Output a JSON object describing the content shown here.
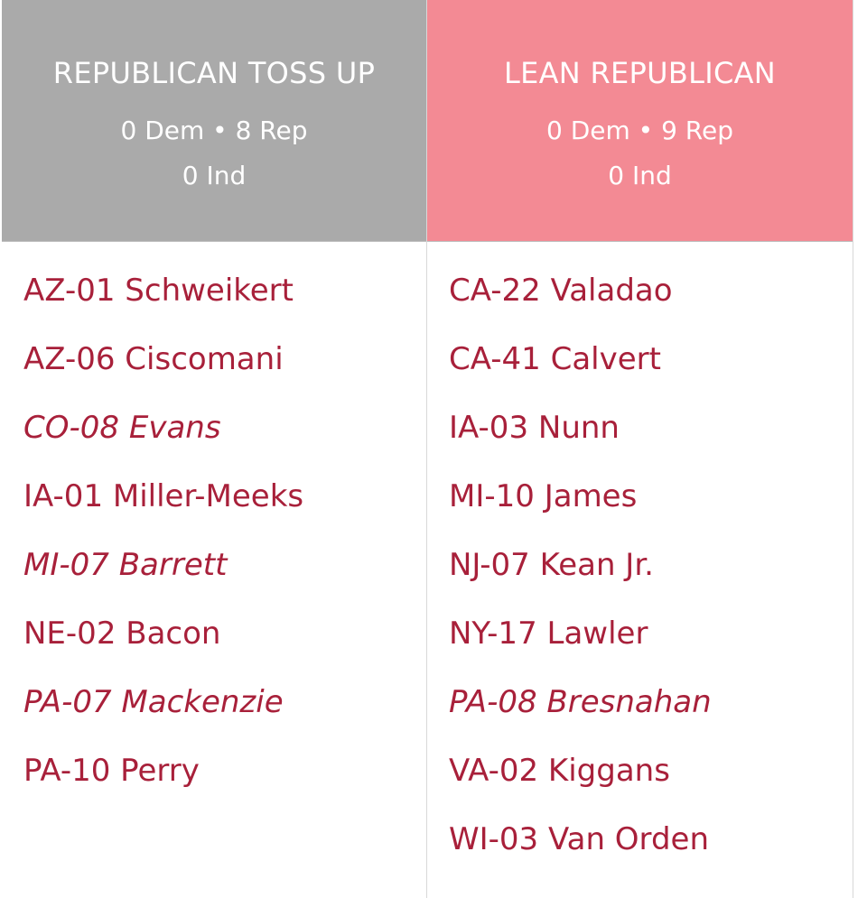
{
  "colors": {
    "toss_up_header": "#aaaaaa",
    "lean_header": "#f38a94",
    "seat_text": "#a8203a"
  },
  "columns": [
    {
      "title": "REPUBLICAN TOSS UP",
      "counts_line1": "0 Dem • 8 Rep",
      "counts_line2": "0 Ind",
      "seats": [
        {
          "label": "AZ-01 Schweikert",
          "italic": false
        },
        {
          "label": "AZ-06 Ciscomani",
          "italic": false
        },
        {
          "label": "CO-08 Evans",
          "italic": true
        },
        {
          "label": "IA-01 Miller-Meeks",
          "italic": false
        },
        {
          "label": "MI-07 Barrett",
          "italic": true
        },
        {
          "label": "NE-02 Bacon",
          "italic": false
        },
        {
          "label": "PA-07 Mackenzie",
          "italic": true
        },
        {
          "label": "PA-10 Perry",
          "italic": false
        }
      ]
    },
    {
      "title": "LEAN REPUBLICAN",
      "counts_line1": "0 Dem • 9 Rep",
      "counts_line2": "0 Ind",
      "seats": [
        {
          "label": "CA-22 Valadao",
          "italic": false
        },
        {
          "label": "CA-41 Calvert",
          "italic": false
        },
        {
          "label": "IA-03 Nunn",
          "italic": false
        },
        {
          "label": "MI-10 James",
          "italic": false
        },
        {
          "label": "NJ-07 Kean Jr.",
          "italic": false
        },
        {
          "label": "NY-17 Lawler",
          "italic": false
        },
        {
          "label": "PA-08 Bresnahan",
          "italic": true
        },
        {
          "label": "VA-02 Kiggans",
          "italic": false
        },
        {
          "label": "WI-03 Van Orden",
          "italic": false
        }
      ]
    }
  ]
}
